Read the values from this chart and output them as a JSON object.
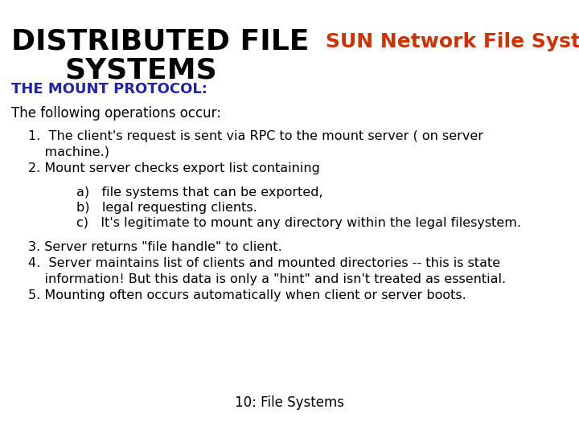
{
  "bg_color": "#ffffff",
  "title1": "DISTRIBUTED FILE",
  "title2": "SYSTEMS",
  "subtitle": "SUN Network File System",
  "section": "THE MOUNT PROTOCOL:",
  "intro": "The following operations occur:",
  "item1a": "1.  The client's request is sent via RPC to the mount server ( on server",
  "item1b": "    machine.)",
  "item2": "2. Mount server checks export list containing",
  "itema": "a)   file systems that can be exported,",
  "itemb": "b)   legal requesting clients.",
  "itemc": "c)   It's legitimate to mount any directory within the legal filesystem.",
  "item3": "3. Server returns \"file handle\" to client.",
  "item4a": "4.  Server maintains list of clients and mounted directories -- this is state",
  "item4b": "    information! But this data is only a \"hint\" and isn't treated as essential.",
  "item5": "5. Mounting often occurs automatically when client or server boots.",
  "footer": "10: File Systems",
  "title_color": "#000000",
  "subtitle_color": "#cc3300",
  "section_color": "#2222aa",
  "body_color": "#000000",
  "footer_color": "#000000",
  "title_fontsize": 26,
  "subtitle_fontsize": 18,
  "section_fontsize": 13,
  "intro_fontsize": 12,
  "body_fontsize": 11.5,
  "footer_fontsize": 12
}
